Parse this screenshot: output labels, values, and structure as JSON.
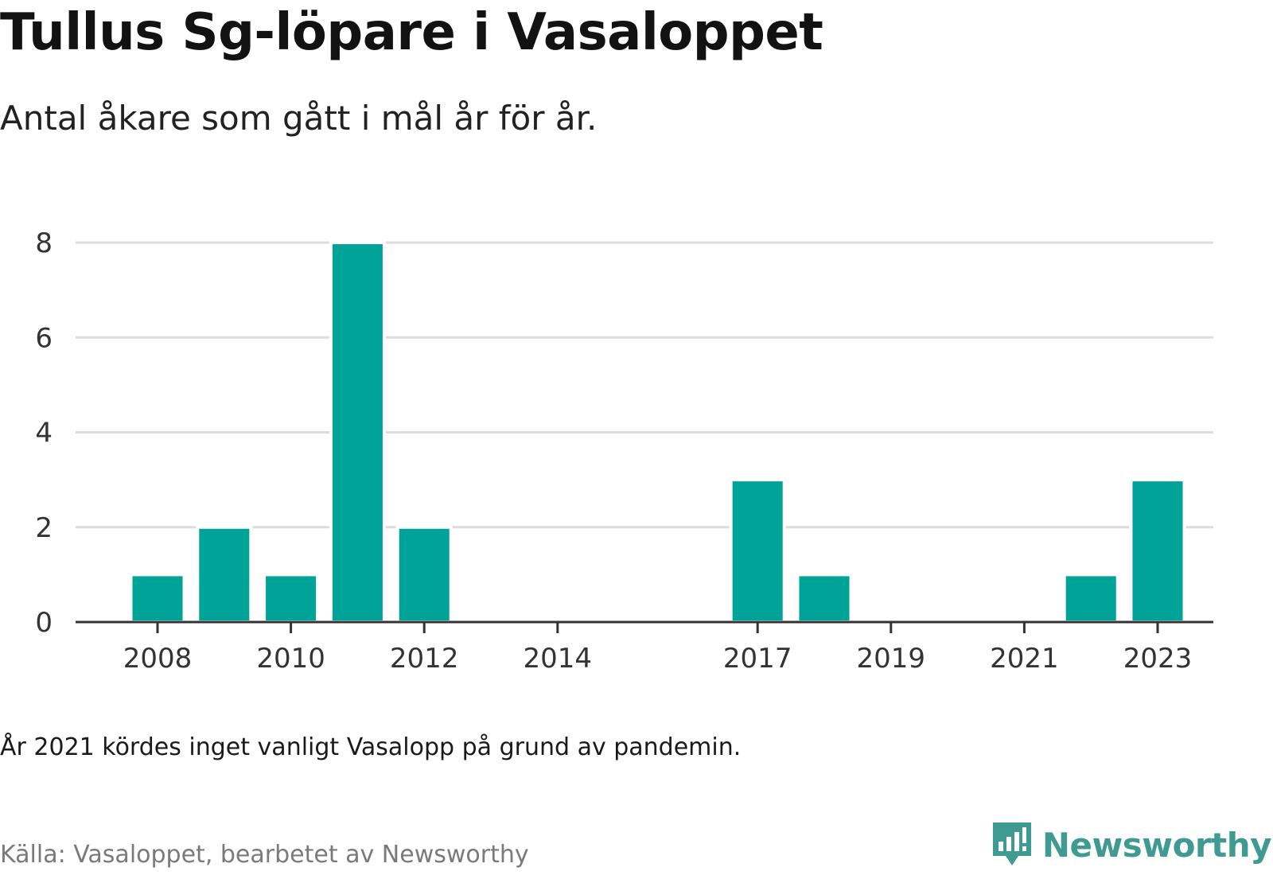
{
  "title": "Tullus Sg-löpare i Vasaloppet",
  "subtitle": "Antal åkare som gått i mål år för år.",
  "note": "År 2021 kördes inget vanligt Vasalopp på grund av pandemin.",
  "source": "Källa: Vasaloppet, bearbetet av Newsworthy",
  "brand": {
    "name": "Newsworthy",
    "icon": "newsworthy-logo-icon"
  },
  "colors": {
    "bar": "#00a398",
    "grid": "#dddddd",
    "axis": "#333333",
    "brand": "#3f9b91"
  },
  "chart_data": {
    "type": "bar",
    "title": "Tullus Sg-löpare i Vasaloppet",
    "subtitle": "Antal åkare som gått i mål år för år.",
    "xlabel": "",
    "ylabel": "",
    "x": [
      2008,
      2009,
      2010,
      2011,
      2012,
      2013,
      2014,
      2015,
      2016,
      2017,
      2018,
      2019,
      2020,
      2021,
      2022,
      2023
    ],
    "values": [
      1,
      2,
      1,
      8,
      2,
      0,
      0,
      0,
      0,
      3,
      1,
      0,
      0,
      0,
      1,
      3
    ],
    "x_tick_labels": [
      "2008",
      "2010",
      "2012",
      "2014",
      "2017",
      "2019",
      "2021",
      "2023"
    ],
    "ylim": [
      0,
      8
    ],
    "y_ticks": [
      0,
      2,
      4,
      6,
      8
    ],
    "grid": true,
    "legend": "none"
  }
}
